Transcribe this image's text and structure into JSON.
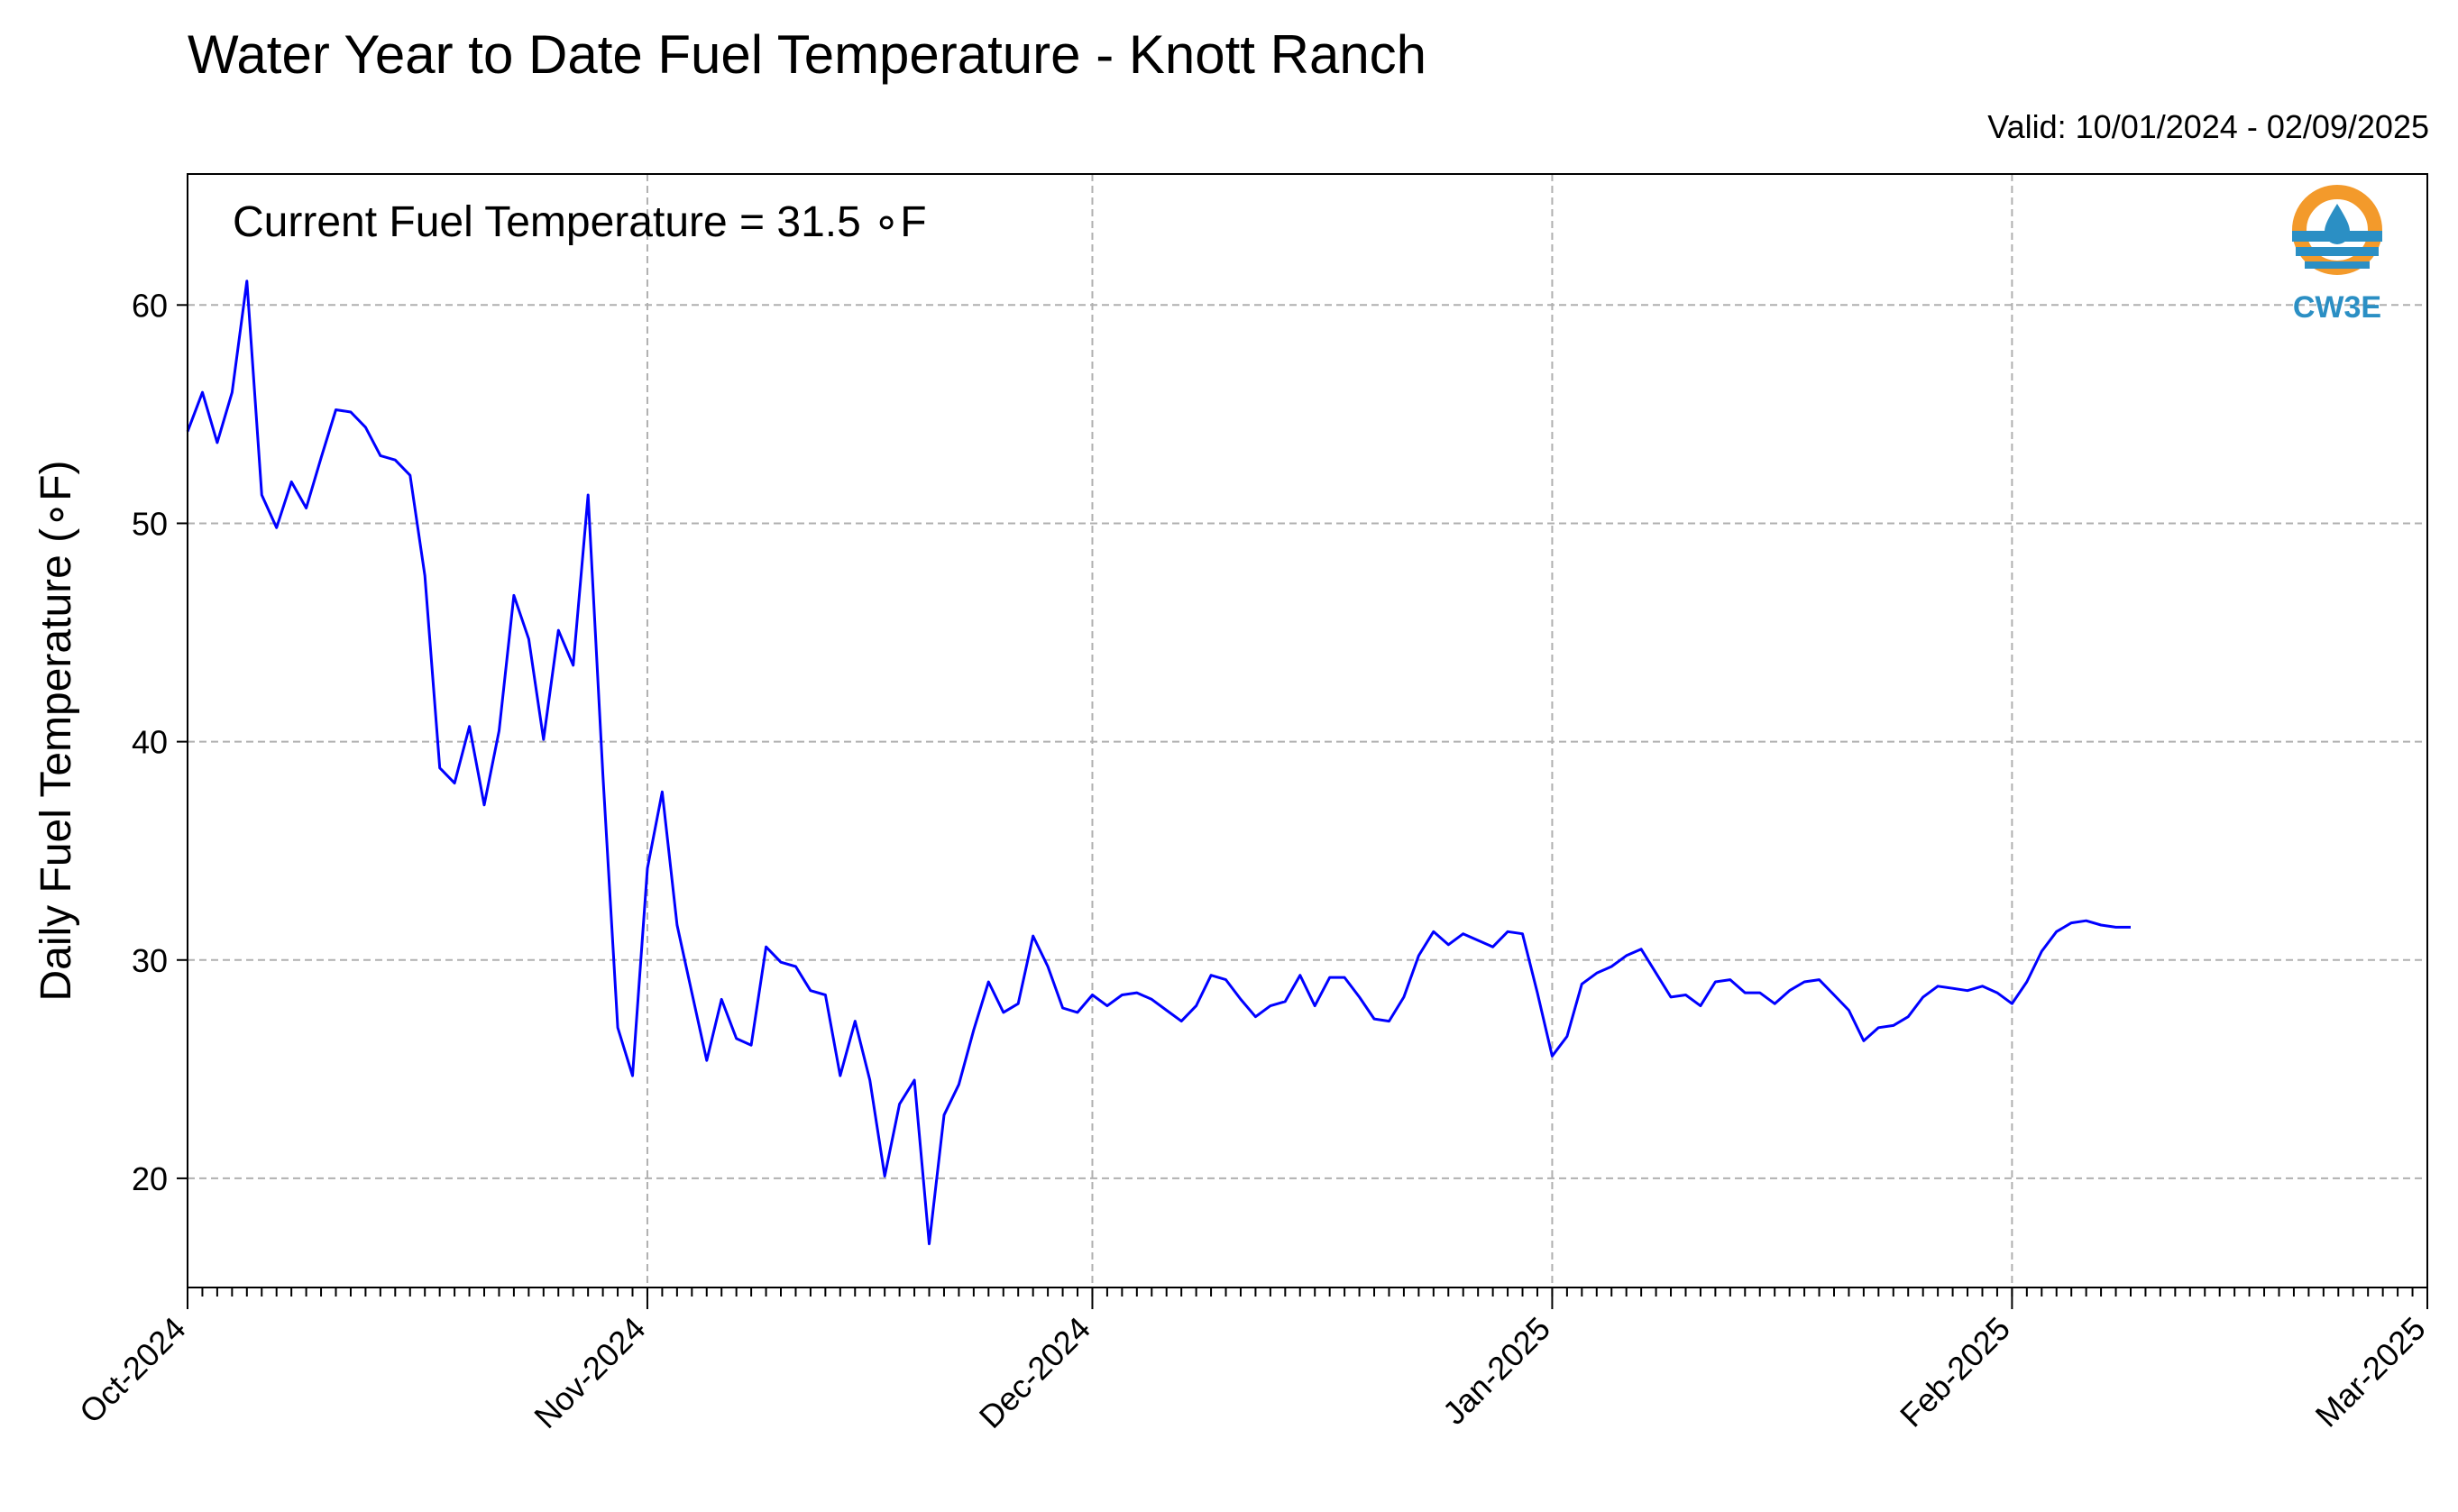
{
  "header": {
    "title": "Water Year to Date Fuel Temperature - Knott Ranch",
    "valid": "Valid: 10/01/2024 - 02/09/2025"
  },
  "logo": {
    "text": "CW3E",
    "icon": "droplet-icon",
    "ring_color": "#f39a2b",
    "wave_color": "#2b8fc4"
  },
  "colors": {
    "line": "#0000ff",
    "grid": "#b0b0b0"
  },
  "chart_data": {
    "type": "line",
    "title": "Water Year to Date Fuel Temperature - Knott Ranch",
    "ylabel": "Daily Fuel Temperature (∘F)",
    "xlabel": "",
    "annotation": "Current Fuel Temperature = 31.5 ∘F",
    "ylim": [
      15,
      66
    ],
    "xlim": [
      "2024-10-01",
      "2025-03-01"
    ],
    "grid": true,
    "yticks": [
      20,
      30,
      40,
      50,
      60
    ],
    "xticks": [
      {
        "date": "2024-10-01",
        "label": "Oct-2024"
      },
      {
        "date": "2024-11-01",
        "label": "Nov-2024"
      },
      {
        "date": "2024-12-01",
        "label": "Dec-2024"
      },
      {
        "date": "2025-01-01",
        "label": "Jan-2025"
      },
      {
        "date": "2025-02-01",
        "label": "Feb-2025"
      },
      {
        "date": "2025-03-01",
        "label": "Mar-2025"
      }
    ],
    "series": [
      {
        "start_date": "2024-10-01",
        "values": [
          54.2,
          56.0,
          53.7,
          56.0,
          61.1,
          51.3,
          49.8,
          51.9,
          50.7,
          53.0,
          55.2,
          55.1,
          54.4,
          53.1,
          52.9,
          52.2,
          47.6,
          38.8,
          38.1,
          40.7,
          37.1,
          40.5,
          46.7,
          44.7,
          40.1,
          45.1,
          43.5,
          51.3,
          38.5,
          26.9,
          24.7,
          34.2,
          37.7,
          31.6,
          28.5,
          25.4,
          28.2,
          26.4,
          26.1,
          30.6,
          29.9,
          29.7,
          28.6,
          28.4,
          24.7,
          27.2,
          24.5,
          20.1,
          23.4,
          24.5,
          17.0,
          22.9,
          24.3,
          26.8,
          29.0,
          27.6,
          28.0,
          31.1,
          29.7,
          27.8,
          27.6,
          28.4,
          27.9,
          28.4,
          28.5,
          28.2,
          27.7,
          27.2,
          27.9,
          29.3,
          29.1,
          28.2,
          27.4,
          27.9,
          28.1,
          29.3,
          27.9,
          29.2,
          29.2,
          28.3,
          27.3,
          27.2,
          28.3,
          30.2,
          31.3,
          30.7,
          31.2,
          30.9,
          30.6,
          31.3,
          31.2,
          28.5,
          25.6,
          26.5,
          28.9,
          29.4,
          29.7,
          30.2,
          30.5,
          29.4,
          28.3,
          28.4,
          27.9,
          29.0,
          29.1,
          28.5,
          28.5,
          28.0,
          28.6,
          29.0,
          29.1,
          28.4,
          27.7,
          26.3,
          26.9,
          27.0,
          27.4,
          28.3,
          28.8,
          28.7,
          28.6,
          28.8,
          28.5,
          28.0,
          29.0,
          30.4,
          31.3,
          31.7,
          31.8,
          31.6,
          31.5,
          31.5
        ]
      }
    ]
  }
}
